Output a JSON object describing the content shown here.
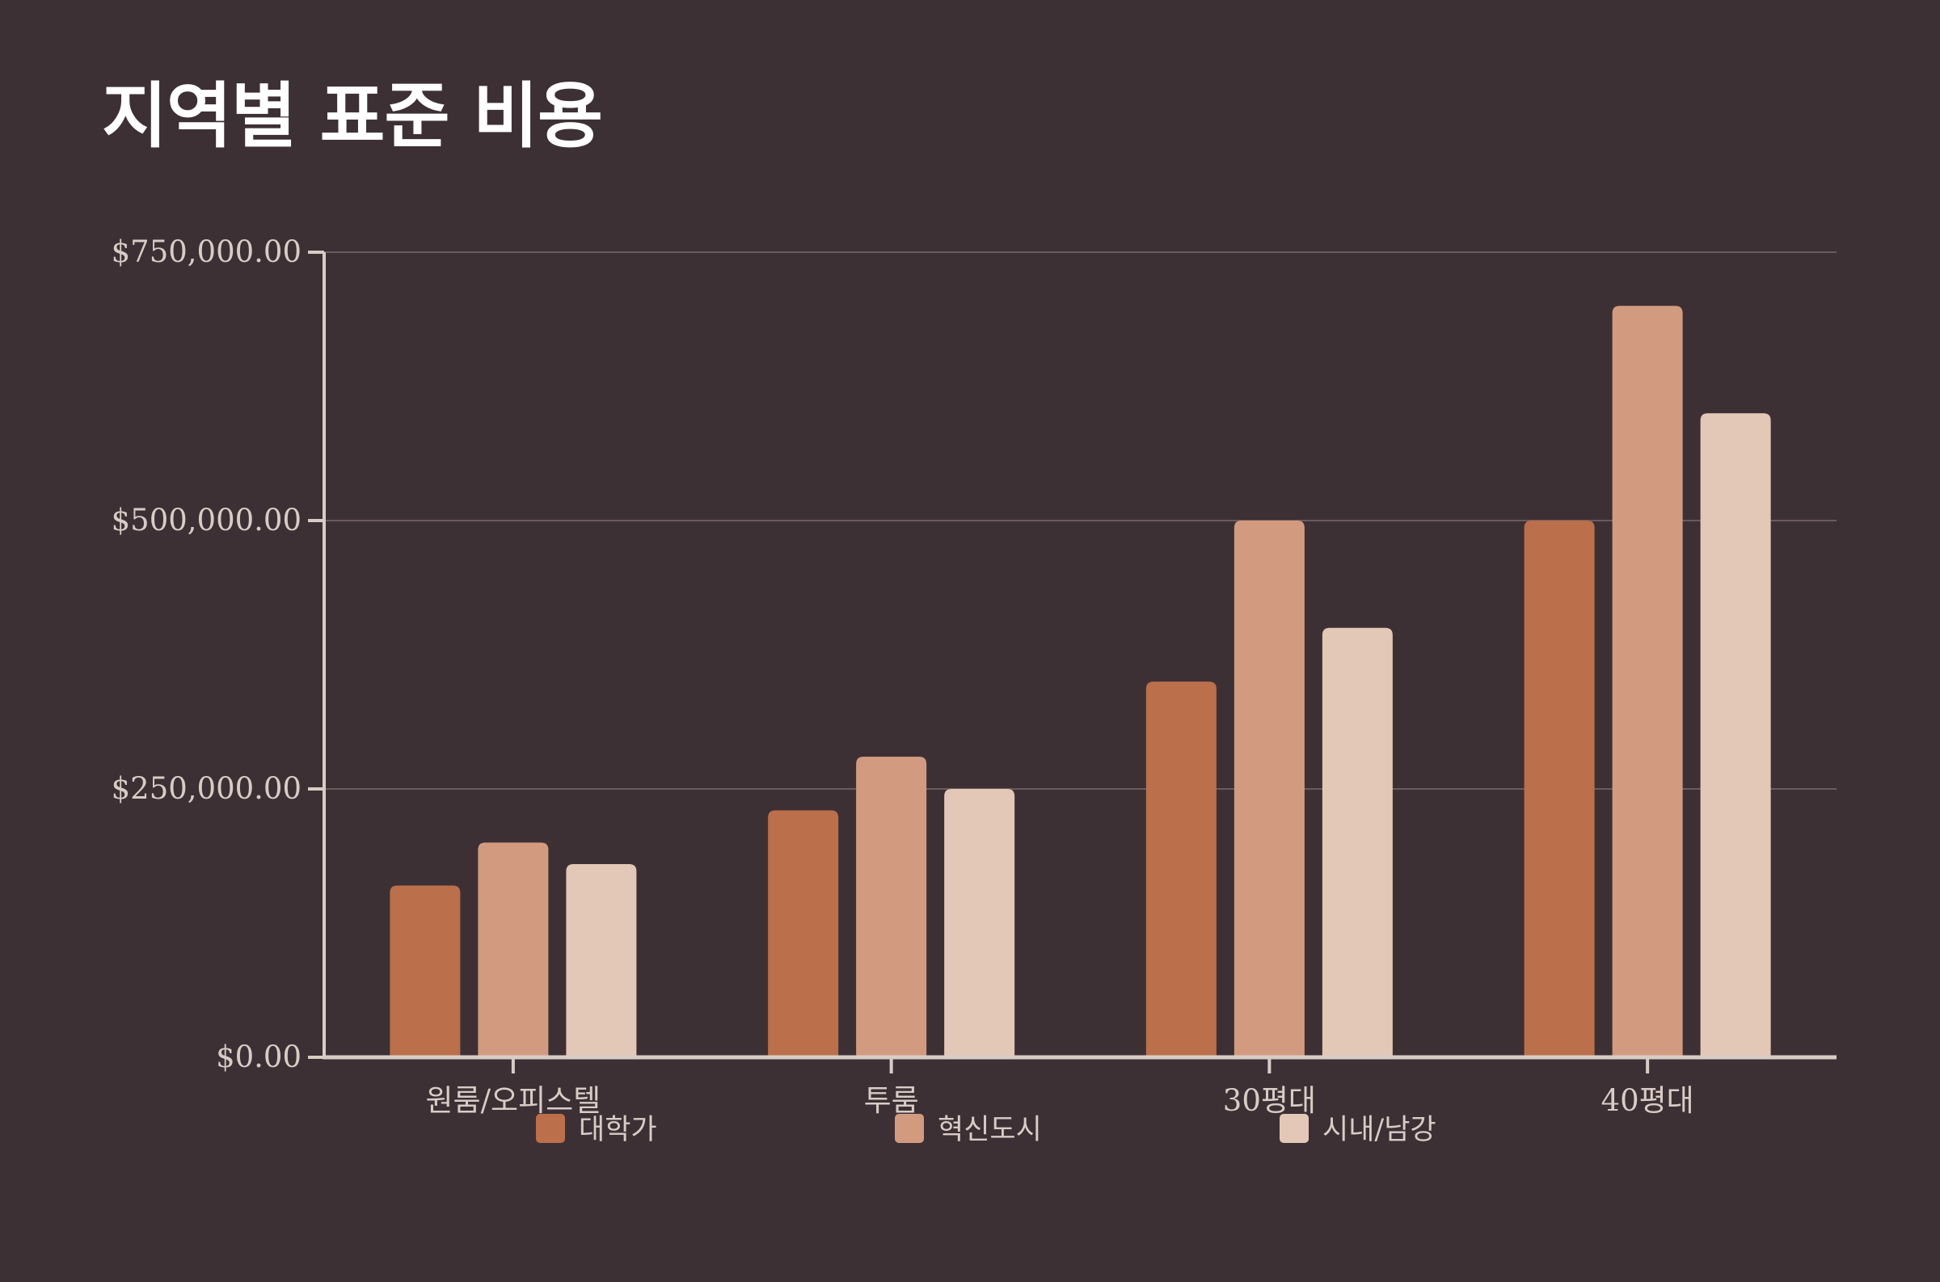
{
  "chart_data": {
    "type": "bar",
    "title": "지역별 표준 비용",
    "categories": [
      "원룸/오피스텔",
      "투룸",
      "30평대",
      "40평대"
    ],
    "series": [
      {
        "name": "대학가",
        "color": "#bb6f4a",
        "values": [
          160000,
          230000,
          350000,
          500000
        ]
      },
      {
        "name": "혁신도시",
        "color": "#d29b80",
        "values": [
          200000,
          280000,
          500000,
          700000
        ]
      },
      {
        "name": "시내/남강",
        "color": "#e3c7b7",
        "values": [
          180000,
          250000,
          400000,
          600000
        ]
      }
    ],
    "ylim": [
      0,
      750000
    ],
    "yticks": [
      0,
      250000,
      500000,
      750000
    ],
    "ytick_labels": [
      "$0.00",
      "$250,000.00",
      "$500,000.00",
      "$750,000.00"
    ],
    "xlabel": "",
    "ylabel": "",
    "grid": true,
    "legend_position": "bottom"
  },
  "colors": {
    "background": "#3d3035",
    "axis": "#d9ccc6",
    "grid": "#6a5b5f",
    "title": "#ffffff"
  }
}
